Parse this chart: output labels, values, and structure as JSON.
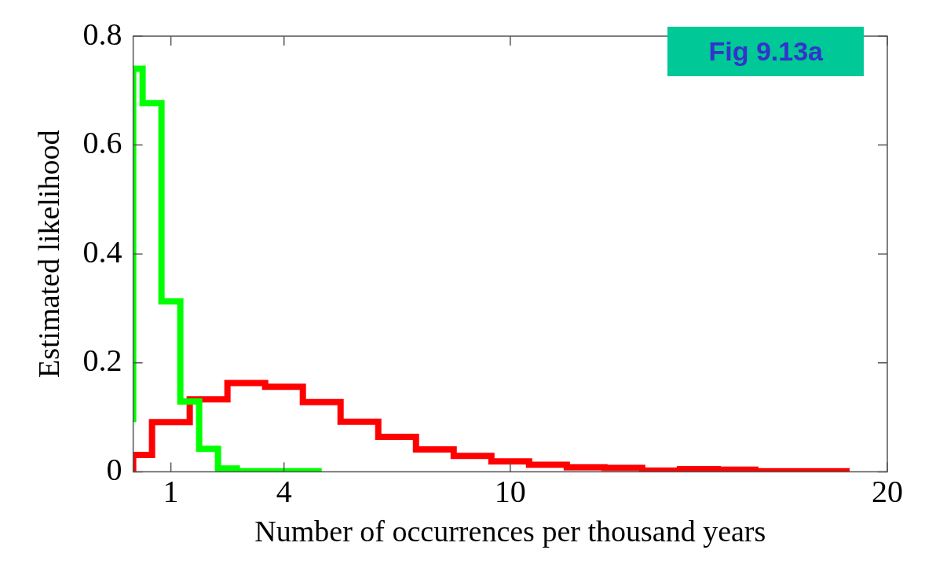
{
  "chart_data": {
    "type": "step",
    "xlabel": "Number of occurrences per thousand years",
    "ylabel": "Estimated likelihood",
    "annotations": [
      "Fig 9.13a"
    ],
    "xlim": [
      0,
      20
    ],
    "xticks": [
      1,
      4,
      10,
      20
    ],
    "ylim": [
      0,
      0.8
    ],
    "yticks": [
      0,
      0.2,
      0.4,
      0.6,
      0.8
    ],
    "grid": false,
    "legend": false,
    "series": [
      {
        "color": "#00ff00",
        "x": [
          0,
          0.25,
          0.75,
          1.25,
          1.75,
          2.25,
          2.75,
          3.25,
          5.0
        ],
        "values": [
          0.091,
          0.74,
          0.677,
          0.313,
          0.129,
          0.042,
          0.006,
          0.001,
          0.001
        ]
      },
      {
        "color": "#ff0000",
        "x": [
          0,
          0.5,
          1.5,
          2.5,
          3.5,
          4.5,
          5.5,
          6.5,
          7.5,
          8.5,
          9.5,
          10.5,
          11.5,
          12.5,
          13.5,
          14.5,
          15.5,
          16.5,
          17.5,
          18.5,
          19
        ],
        "values": [
          0,
          0.031,
          0.091,
          0.133,
          0.163,
          0.156,
          0.128,
          0.092,
          0.064,
          0.041,
          0.029,
          0.019,
          0.013,
          0.008,
          0.007,
          0.002,
          0.005,
          0.004,
          0.001,
          0.001,
          0.001
        ]
      }
    ]
  }
}
